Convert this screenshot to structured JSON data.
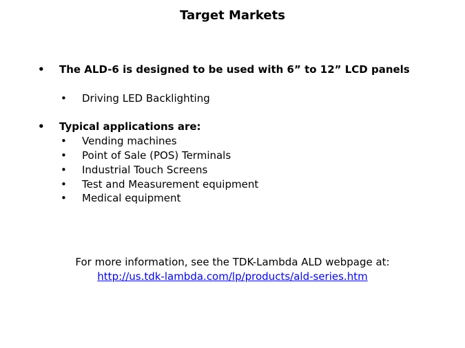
{
  "title": "Target Markets",
  "bullets": [
    {
      "text": "The ALD-6 is designed to be used with 6” to 12” LCD panels",
      "sub": [
        "Driving LED Backlighting"
      ]
    },
    {
      "text": "Typical applications are:",
      "sub": [
        "Vending machines",
        "Point of Sale (POS) Terminals",
        "Industrial Touch Screens",
        "Test and Measurement equipment",
        "Medical equipment"
      ]
    }
  ],
  "bullet_char": "•",
  "footer": {
    "text": "For more information, see the TDK-Lambda ALD webpage at:",
    "link": "http://us.tdk-lambda.com/lp/products/ald-series.htm"
  }
}
